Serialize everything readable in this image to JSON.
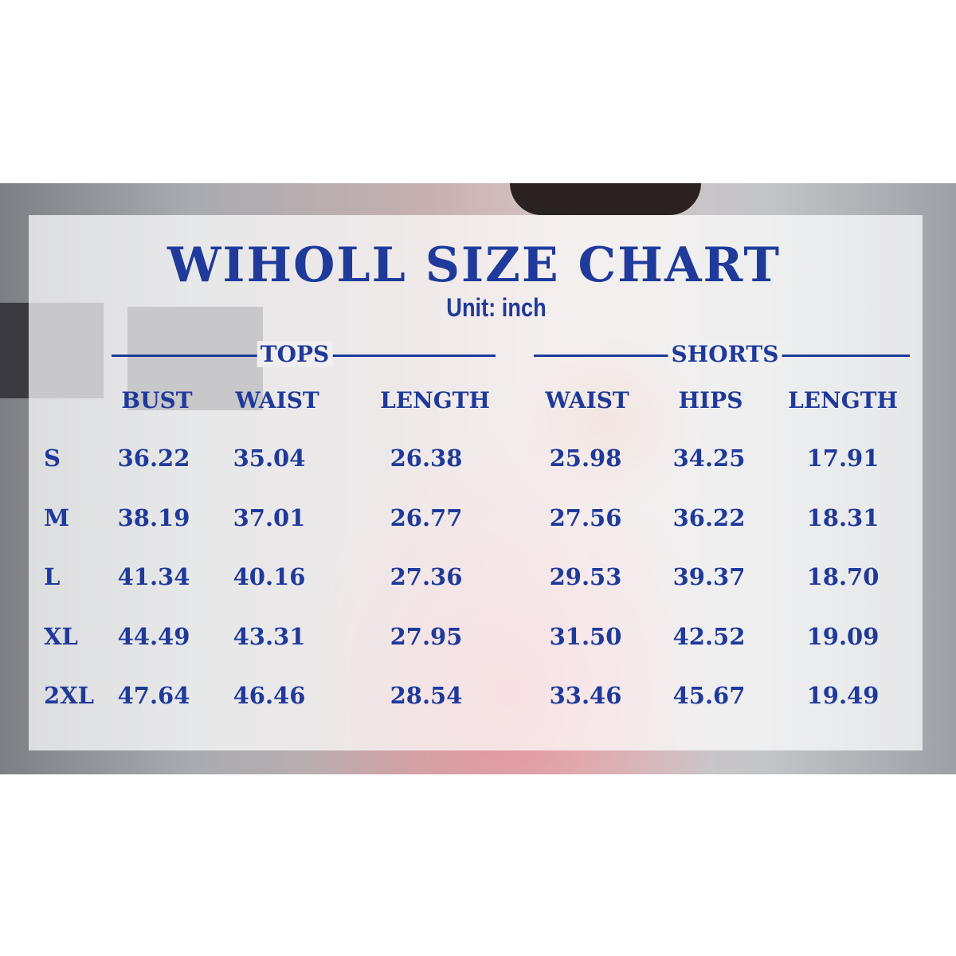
{
  "title": "WIHOLL SIZE CHART",
  "unit": "Unit: inch",
  "sections": {
    "tops": "TOPS",
    "shorts": "SHORTS"
  },
  "columns": [
    "BUST",
    "WAIST",
    "LENGTH",
    "WAIST",
    "HIPS",
    "LENGTH"
  ],
  "rows": [
    {
      "size": "S",
      "values": [
        "36.22",
        "35.04",
        "26.38",
        "25.98",
        "34.25",
        "17.91"
      ]
    },
    {
      "size": "M",
      "values": [
        "38.19",
        "37.01",
        "26.77",
        "27.56",
        "36.22",
        "18.31"
      ]
    },
    {
      "size": "L",
      "values": [
        "41.34",
        "40.16",
        "27.36",
        "29.53",
        "39.37",
        "18.70"
      ]
    },
    {
      "size": "XL",
      "values": [
        "44.49",
        "43.31",
        "27.95",
        "31.50",
        "42.52",
        "19.09"
      ]
    },
    {
      "size": "2XL",
      "values": [
        "47.64",
        "46.46",
        "28.54",
        "33.46",
        "45.67",
        "19.49"
      ]
    }
  ],
  "colors": {
    "text": "#1f3a9a"
  }
}
